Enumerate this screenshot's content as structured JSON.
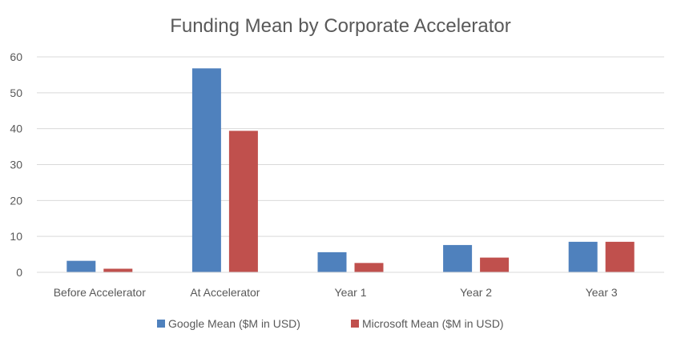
{
  "chart_data": {
    "type": "bar",
    "title": "Funding Mean by Corporate Accelerator",
    "xlabel": "",
    "ylabel": "",
    "categories": [
      "Before Accelerator",
      "At Accelerator",
      "Year 1",
      "Year 2",
      "Year 3"
    ],
    "series": [
      {
        "name": "Google Mean ($M in USD)",
        "values": [
          3.2,
          56.8,
          5.6,
          7.6,
          8.5
        ],
        "color": "#4f81bd"
      },
      {
        "name": "Microsoft Mean ($M in USD)",
        "values": [
          1.0,
          39.4,
          2.6,
          4.1,
          8.5
        ],
        "color": "#c0504d"
      }
    ],
    "ylim": [
      0,
      60
    ],
    "yticks": [
      "0",
      "10",
      "20",
      "30",
      "40",
      "50",
      "60"
    ],
    "grid": true,
    "legend_position": "bottom"
  }
}
